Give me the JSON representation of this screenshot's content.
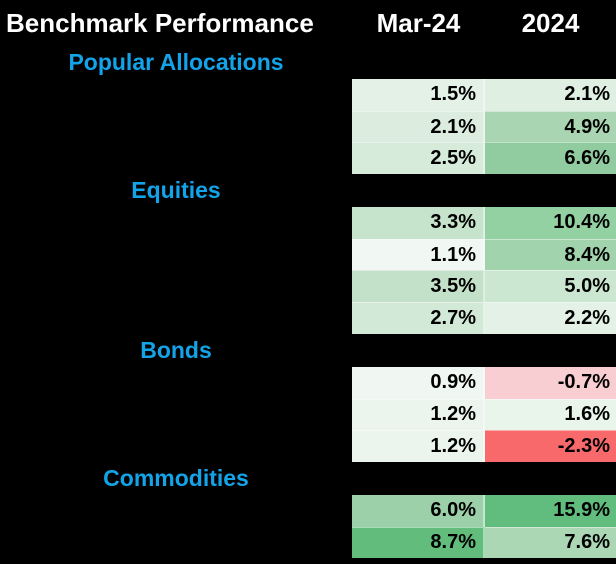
{
  "header": {
    "title": "Benchmark Performance",
    "columns": [
      "Mar-24",
      "2024"
    ]
  },
  "colors": {
    "background": "#000000",
    "header_text": "#FFFFFF",
    "section_label_blue": "#12A3E8",
    "cell_text": "#000000",
    "scale_negative": "#F8696B",
    "scale_neutral": "#FCFCFF",
    "scale_positive": "#63BE7B"
  },
  "table": {
    "sections": [
      {
        "label": "Popular Allocations",
        "rows": [
          {
            "mar": "1.5%",
            "mar_bg": "#E4F1E6",
            "ytd": "2.1%",
            "ytd_bg": "#DFEFE2"
          },
          {
            "mar": "2.1%",
            "mar_bg": "#DCEDDF",
            "ytd": "4.9%",
            "ytd_bg": "#A9D5B2"
          },
          {
            "mar": "2.5%",
            "mar_bg": "#D6EBDA",
            "ytd": "6.6%",
            "ytd_bg": "#90CCA0"
          }
        ]
      },
      {
        "label": "Equities",
        "rows": [
          {
            "mar": "3.3%",
            "mar_bg": "#C6E3CC",
            "ytd": "10.4%",
            "ytd_bg": "#93D0A2"
          },
          {
            "mar": "1.1%",
            "mar_bg": "#F1F7F2",
            "ytd": "8.4%",
            "ytd_bg": "#A1D3AD"
          },
          {
            "mar": "3.5%",
            "mar_bg": "#C3E1C9",
            "ytd": "5.0%",
            "ytd_bg": "#CBE7D1"
          },
          {
            "mar": "2.7%",
            "mar_bg": "#D3E9D7",
            "ytd": "2.2%",
            "ytd_bg": "#E3F1E6"
          }
        ]
      },
      {
        "label": "Bonds",
        "rows": [
          {
            "mar": "0.9%",
            "mar_bg": "#F0F6F1",
            "ytd": "-0.7%",
            "ytd_bg": "#F9CED2"
          },
          {
            "mar": "1.2%",
            "mar_bg": "#ECF4EE",
            "ytd": "1.6%",
            "ytd_bg": "#E9F4EB"
          },
          {
            "mar": "1.2%",
            "mar_bg": "#ECF4EE",
            "ytd": "-2.3%",
            "ytd_bg": "#F8696B"
          }
        ]
      },
      {
        "label": "Commodities",
        "rows": [
          {
            "mar": "6.0%",
            "mar_bg": "#9BD0A8",
            "ytd": "15.9%",
            "ytd_bg": "#60BD7D"
          },
          {
            "mar": "8.7%",
            "mar_bg": "#62BD7C",
            "ytd": "7.6%",
            "ytd_bg": "#ABD7B4"
          }
        ]
      }
    ]
  },
  "chart_data": {
    "type": "heatmap",
    "title": "Benchmark Performance",
    "columns": [
      "Mar-24",
      "2024"
    ],
    "sections": [
      {
        "label": "Popular Allocations",
        "values": [
          [
            1.5,
            2.1
          ],
          [
            2.1,
            4.9
          ],
          [
            2.5,
            6.6
          ]
        ]
      },
      {
        "label": "Equities",
        "values": [
          [
            3.3,
            10.4
          ],
          [
            1.1,
            8.4
          ],
          [
            3.5,
            5.0
          ],
          [
            2.7,
            2.2
          ]
        ]
      },
      {
        "label": "Bonds",
        "values": [
          [
            0.9,
            -0.7
          ],
          [
            1.2,
            1.6
          ],
          [
            1.2,
            -2.3
          ]
        ]
      },
      {
        "label": "Commodities",
        "values": [
          [
            6.0,
            15.9
          ],
          [
            8.7,
            7.6
          ]
        ]
      }
    ],
    "unit": "percent",
    "color_scale": {
      "negative": "#F8696B",
      "neutral": "#FCFCFF",
      "positive": "#63BE7B"
    },
    "legend_position": "none",
    "grid": false
  }
}
